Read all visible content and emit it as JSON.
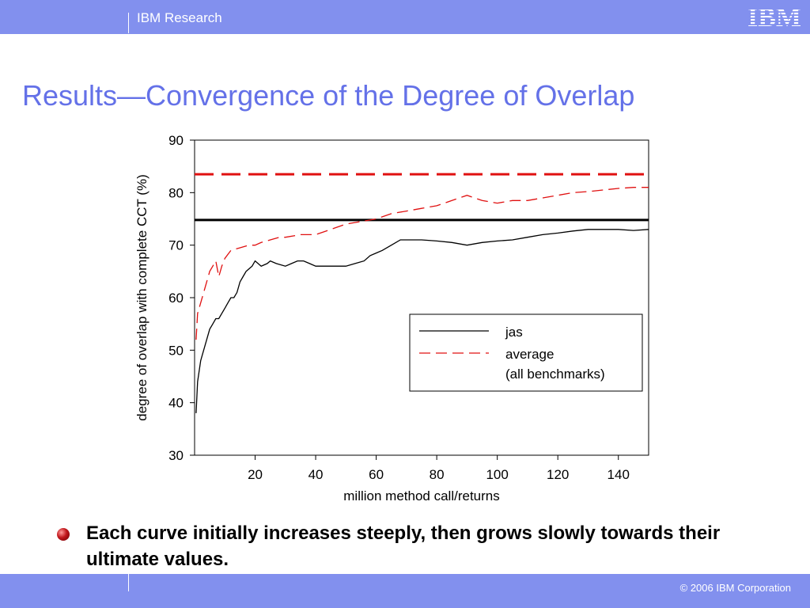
{
  "header": {
    "org": "IBM Research",
    "logo_text": "IBM"
  },
  "slide": {
    "title": "Results—Convergence of the Degree of Overlap"
  },
  "bullets": [
    {
      "text": "Each curve initially increases steeply, then grows slowly towards their ultimate values."
    }
  ],
  "footer": {
    "copyright": "© 2006 IBM Corporation"
  },
  "colors": {
    "bar": "#8290ee",
    "title": "#6471e8",
    "jas": "#000000",
    "average": "#e01010"
  },
  "chart_data": {
    "type": "line",
    "xlabel": "million method call/returns",
    "ylabel": "degree of overlap with complete CCT (%)",
    "xlim": [
      0,
      150
    ],
    "ylim": [
      30,
      90
    ],
    "xticks": [
      20,
      40,
      60,
      80,
      100,
      120,
      140
    ],
    "yticks": [
      30,
      40,
      50,
      60,
      70,
      80,
      90
    ],
    "grid": false,
    "legend": {
      "placement": "lower-right",
      "entries": [
        "jas",
        "average",
        "(all benchmarks)"
      ]
    },
    "series": [
      {
        "name": "jas",
        "style": "solid",
        "x": [
          0.5,
          1,
          2,
          3,
          4,
          5,
          6,
          7,
          8,
          9,
          10,
          11,
          12,
          13,
          14,
          15,
          16,
          17,
          18,
          19,
          20,
          22,
          24,
          25,
          27,
          30,
          32,
          34,
          36,
          38,
          40,
          43,
          46,
          50,
          53,
          56,
          58,
          60,
          62,
          65,
          68,
          70,
          75,
          80,
          85,
          90,
          95,
          100,
          105,
          110,
          115,
          120,
          125,
          130,
          135,
          140,
          145,
          150
        ],
        "values": [
          38,
          44,
          48,
          50,
          52,
          54,
          55,
          56,
          56,
          57,
          58,
          59,
          60,
          60,
          61,
          63,
          64,
          65,
          65.5,
          66,
          67,
          66,
          66.5,
          67,
          66.5,
          66,
          66.5,
          67,
          67,
          66.5,
          66,
          66,
          66,
          66,
          66.5,
          67,
          68,
          68.5,
          69,
          70,
          71,
          71,
          71,
          70.8,
          70.5,
          70,
          70.5,
          70.8,
          71,
          71.5,
          72,
          72.3,
          72.7,
          73,
          73,
          73,
          72.8,
          73
        ]
      },
      {
        "name": "average",
        "style": "dashed",
        "x": [
          0.5,
          1,
          2,
          3,
          4,
          5,
          6,
          7,
          8,
          9,
          10,
          12,
          15,
          18,
          20,
          22,
          25,
          28,
          30,
          35,
          40,
          45,
          50,
          55,
          60,
          65,
          70,
          75,
          80,
          85,
          90,
          95,
          100,
          105,
          110,
          115,
          120,
          125,
          130,
          135,
          140,
          145,
          150
        ],
        "values": [
          52,
          57,
          59,
          61,
          63,
          65,
          66,
          67,
          64,
          66,
          67.5,
          69,
          69.5,
          70,
          70,
          70.5,
          71,
          71.5,
          71.5,
          72,
          72,
          73,
          74,
          74.5,
          75,
          76,
          76.5,
          77,
          77.5,
          78.5,
          79.5,
          78.5,
          78,
          78.5,
          78.5,
          79,
          79.5,
          80,
          80.2,
          80.5,
          80.8,
          81,
          81
        ]
      }
    ],
    "reference_lines": [
      {
        "name": "jas",
        "style": "solid",
        "value": 74.8
      },
      {
        "name": "average",
        "style": "dashed",
        "value": 83.5
      }
    ]
  }
}
